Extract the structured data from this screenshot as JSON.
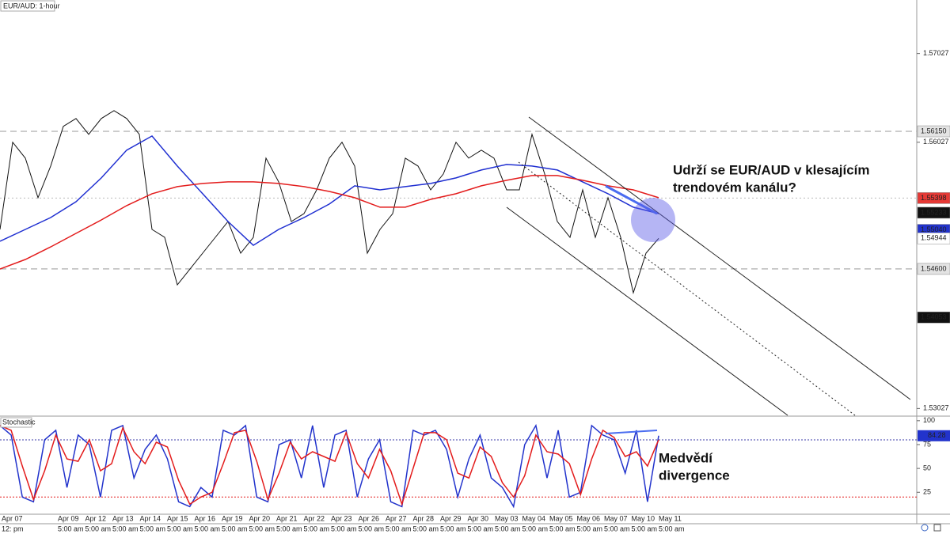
{
  "chart_data": [
    {
      "type": "line",
      "title": "EUR/AUD: 1-hour",
      "ylim": [
        1.5295,
        1.5763
      ],
      "yticks": [
        1.57027,
        1.56027,
        1.53027
      ],
      "series": [
        {
          "color": "#111111",
          "values": [
            1.55045,
            1.56027,
            1.55848,
            1.55402,
            1.55759,
            1.56206,
            1.56295,
            1.56116,
            1.56295,
            1.56384,
            1.56295,
            1.56116,
            1.55045,
            1.54956,
            1.5442,
            1.54598,
            1.54777,
            1.54956,
            1.55134,
            1.54777,
            1.54956,
            1.55848,
            1.55581,
            1.55134,
            1.55223,
            1.55491,
            1.55848,
            1.56027,
            1.55759,
            1.54777,
            1.55045,
            1.55223,
            1.55848,
            1.55759,
            1.55491,
            1.5567,
            1.56027,
            1.55848,
            1.55938,
            1.55848,
            1.55491,
            1.55491,
            1.56116,
            1.5567,
            1.55134,
            1.54956,
            1.55491,
            1.54956,
            1.55402,
            1.54956,
            1.54331,
            1.54777,
            1.54944
          ]
        },
        {
          "color": "#1f2fd1",
          "values": [
            1.54911,
            1.55045,
            1.55179,
            1.55357,
            1.55625,
            1.55938,
            1.56098,
            1.55759,
            1.55447,
            1.55134,
            1.54866,
            1.55045,
            1.55179,
            1.55331,
            1.55536,
            1.55491,
            1.55527,
            1.55563,
            1.55625,
            1.55714,
            1.55777,
            1.55759,
            1.55714,
            1.55581,
            1.55447,
            1.55295,
            1.55223
          ]
        },
        {
          "color": "#e31c1c",
          "values": [
            1.54598,
            1.54706,
            1.54848,
            1.55,
            1.55152,
            1.55313,
            1.55447,
            1.55527,
            1.55563,
            1.55581,
            1.55581,
            1.55563,
            1.55527,
            1.55473,
            1.55402,
            1.55295,
            1.55295,
            1.55384,
            1.55447,
            1.55536,
            1.55598,
            1.55652,
            1.55652,
            1.55598,
            1.55536,
            1.55491,
            1.55402
          ]
        }
      ],
      "price_labels": [
        {
          "value": 1.5615,
          "label": "1.56150",
          "bg": "#e3e3e3",
          "fg": "#333333",
          "line": "dashed"
        },
        {
          "value": 1.55398,
          "label": "1.55398",
          "bg": "#e53935",
          "fg": "#ffffff",
          "line": "dotted"
        },
        {
          "value": 1.55233,
          "label": "1.55233",
          "bg": "#111111",
          "fg": "#ffffff"
        },
        {
          "value": 1.5504,
          "label": "1.55040",
          "bg": "#2233cc",
          "fg": "#ffffff"
        },
        {
          "value": 1.54944,
          "label": "1.54944",
          "bg": "#ffffff",
          "fg": "#111111"
        },
        {
          "value": 1.546,
          "label": "1.54600",
          "bg": "#e3e3e3",
          "fg": "#333333",
          "line": "dashed"
        },
        {
          "value": 1.54053,
          "label": "1.54053",
          "bg": "#111111",
          "fg": "#ffffff"
        }
      ],
      "annotation": [
        "Udrží se EUR/AUD v klesajícím",
        "trendovém kanálu?"
      ],
      "x_labels": {
        "dates": [
          "Apr 07",
          null,
          "Apr 09",
          "Apr 12",
          "Apr 13",
          "Apr 14",
          "Apr 15",
          "Apr 16",
          "Apr 19",
          "Apr 20",
          "Apr 21",
          "Apr 22",
          "Apr 23",
          "Apr 26",
          "Apr 27",
          "Apr 28",
          "Apr 29",
          "Apr 30",
          "May 03",
          "May 04",
          "May 05",
          "May 06",
          "May 07",
          "May 10",
          "May 11"
        ],
        "times": [
          "12: pm",
          null,
          "5:00 am",
          "5:00 am",
          "5:00 am",
          "5:00 am",
          "5:00 am",
          "5:00 am",
          "5:00 am",
          "5:00 am",
          "5:00 am",
          "5:00 am",
          "5:00 am",
          "5:00 am",
          "5:00 am",
          "5:00 am",
          "5:00 am",
          "5:00 am",
          "5:00 am",
          "5:00 am",
          "5:00 am",
          "5:00 am",
          "5:00 am",
          "5:00 am",
          "5:00 am"
        ]
      }
    },
    {
      "type": "line",
      "title": "Stochastic",
      "ylim": [
        2,
        104
      ],
      "yticks": [
        100,
        75,
        50,
        25
      ],
      "series": [
        {
          "color": "#2233cc",
          "values": [
            95,
            85,
            20,
            15,
            80,
            90,
            30,
            85,
            75,
            20,
            90,
            95,
            40,
            70,
            85,
            60,
            15,
            10,
            30,
            20,
            90,
            85,
            95,
            20,
            15,
            75,
            80,
            40,
            95,
            30,
            85,
            90,
            20,
            60,
            80,
            15,
            10,
            90,
            85,
            90,
            70,
            20,
            60,
            85,
            40,
            30,
            10,
            75,
            95,
            40,
            90,
            20,
            25,
            95,
            85,
            80,
            45,
            90,
            15,
            84.28
          ]
        },
        {
          "color": "#e31c1c",
          "values": [
            95,
            90,
            52.5,
            17.5,
            47.5,
            85,
            60,
            57.5,
            80,
            47.5,
            55,
            92.5,
            67.5,
            55,
            77.5,
            72.5,
            37.5,
            12.5,
            20,
            25,
            55,
            87.5,
            90,
            57.5,
            17.5,
            45,
            77.5,
            60,
            67.5,
            62.5,
            57.5,
            87.5,
            55,
            40,
            70,
            47.5,
            12.5,
            50,
            87.5,
            87.5,
            80,
            45,
            40,
            72.5,
            62.5,
            35,
            20,
            42.5,
            85,
            67.5,
            65,
            55,
            22.5,
            60,
            90,
            82.5,
            62.5,
            67.5,
            52.5,
            80
          ]
        }
      ],
      "levels": [
        {
          "value": 80,
          "color": "#3a3aa8"
        },
        {
          "value": 20,
          "color": "#e31c1c"
        }
      ],
      "annotation": [
        "Medvědí",
        "divergence"
      ]
    }
  ]
}
